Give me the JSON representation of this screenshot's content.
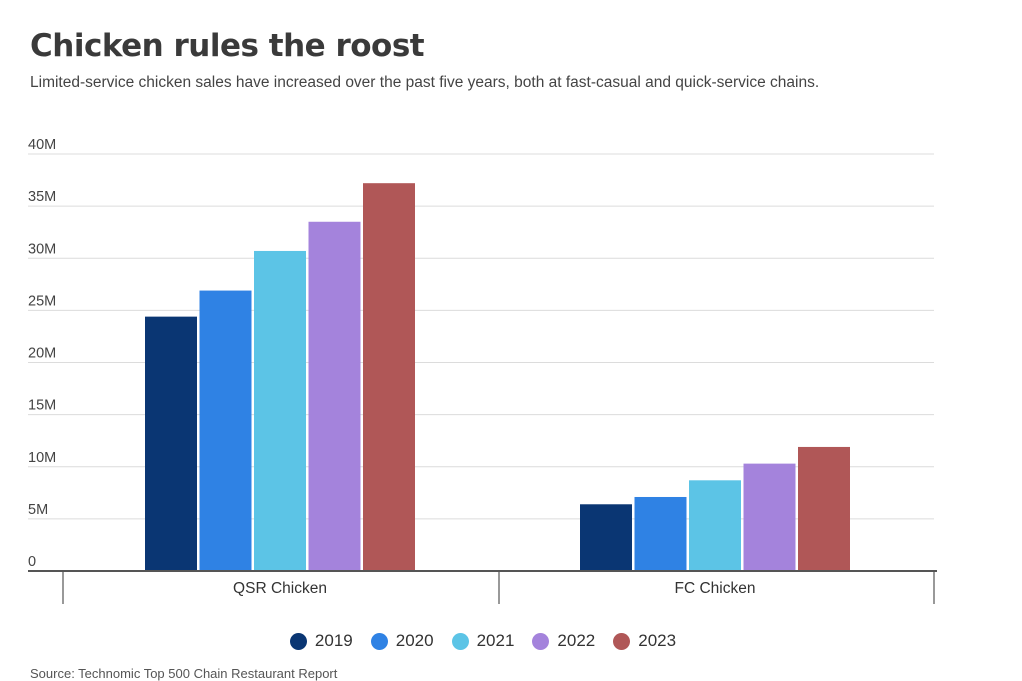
{
  "title": "Chicken rules the roost",
  "subtitle": "Limited-service chicken sales have increased over the past five years, both at fast-casual and quick-service chains.",
  "source": "Source: Technomic Top 500 Chain Restaurant Report",
  "chart_data": {
    "type": "bar",
    "categories": [
      "QSR Chicken",
      "FC Chicken"
    ],
    "series": [
      {
        "name": "2019",
        "color": "#0a3673",
        "values": [
          24.4,
          6.4
        ]
      },
      {
        "name": "2020",
        "color": "#2f82e4",
        "values": [
          26.9,
          7.1
        ]
      },
      {
        "name": "2021",
        "color": "#5cc4e6",
        "values": [
          30.7,
          8.7
        ]
      },
      {
        "name": "2022",
        "color": "#a483dc",
        "values": [
          33.5,
          10.3
        ]
      },
      {
        "name": "2023",
        "color": "#b05757",
        "values": [
          37.2,
          11.9
        ]
      }
    ],
    "yticks": [
      "0",
      "5M",
      "10M",
      "15M",
      "20M",
      "25M",
      "30M",
      "35M",
      "40M"
    ],
    "ylim": [
      0,
      40
    ],
    "grid": true,
    "legend": "bottom-center"
  }
}
